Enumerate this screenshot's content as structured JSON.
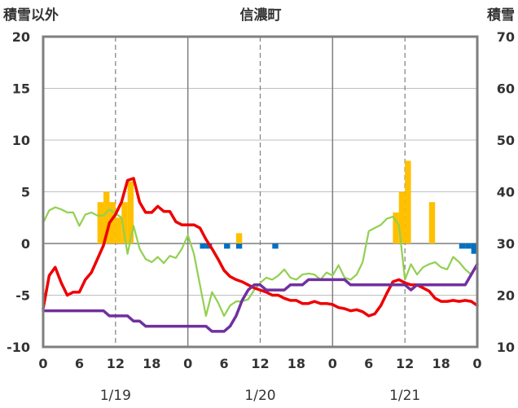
{
  "chart_data": {
    "type": "line",
    "title": "信濃町",
    "ylabel_left": "積雪以外",
    "ylabel_right": "積雪",
    "y_left": {
      "min": -10,
      "max": 20,
      "ticks": [
        -10,
        -5,
        0,
        5,
        10,
        15,
        20
      ]
    },
    "y_right": {
      "min": 10,
      "max": 70,
      "ticks": [
        10,
        20,
        30,
        40,
        50,
        60,
        70
      ]
    },
    "x": {
      "min": 0,
      "max": 72,
      "hour_ticks": [
        0,
        6,
        12,
        18,
        0,
        6,
        12,
        18,
        0,
        6,
        12,
        18,
        0
      ]
    },
    "day_labels": [
      "1/19",
      "1/20",
      "1/21"
    ],
    "grid": true,
    "colors": {
      "temperature": "#ee0000",
      "humidity_like": "#92d050",
      "snow_depth": "#7030a0",
      "snowfall": "#ffc000",
      "negative_bar": "#0070c0",
      "frame": "#7f7f7f"
    },
    "bars_positive": [
      {
        "x": 9.5,
        "value": 4
      },
      {
        "x": 10.5,
        "value": 5
      },
      {
        "x": 11.5,
        "value": 4
      },
      {
        "x": 12.5,
        "value": 2.5
      },
      {
        "x": 13.5,
        "value": 4
      },
      {
        "x": 14.5,
        "value": 6
      },
      {
        "x": 32.5,
        "value": 1
      },
      {
        "x": 58.5,
        "value": 3
      },
      {
        "x": 59.5,
        "value": 5
      },
      {
        "x": 60.5,
        "value": 8
      },
      {
        "x": 64.5,
        "value": 4
      }
    ],
    "bars_negative": [
      {
        "x": 26.5,
        "value": -0.5
      },
      {
        "x": 27.5,
        "value": -0.5
      },
      {
        "x": 30.5,
        "value": -0.5
      },
      {
        "x": 32.5,
        "value": -0.5
      },
      {
        "x": 38.5,
        "value": -0.5
      },
      {
        "x": 69.5,
        "value": -0.5
      },
      {
        "x": 70.5,
        "value": -0.5
      },
      {
        "x": 71.5,
        "value": -1
      }
    ],
    "series": [
      {
        "key": "red",
        "axis": "left",
        "points": [
          [
            0,
            -6.3
          ],
          [
            1,
            -3.1
          ],
          [
            2,
            -2.3
          ],
          [
            3,
            -3.8
          ],
          [
            4,
            -5
          ],
          [
            5,
            -4.7
          ],
          [
            6,
            -4.7
          ],
          [
            7,
            -3.5
          ],
          [
            8,
            -2.8
          ],
          [
            9,
            -1.5
          ],
          [
            10,
            -0.2
          ],
          [
            11,
            2
          ],
          [
            12,
            2.8
          ],
          [
            13,
            4
          ],
          [
            14,
            6.1
          ],
          [
            15,
            6.3
          ],
          [
            16,
            4
          ],
          [
            17,
            3
          ],
          [
            18,
            3
          ],
          [
            19,
            3.6
          ],
          [
            20,
            3.1
          ],
          [
            21,
            3.1
          ],
          [
            22,
            2.1
          ],
          [
            23,
            1.8
          ],
          [
            24,
            1.8
          ],
          [
            25,
            1.8
          ],
          [
            26,
            1.5
          ],
          [
            27,
            0.4
          ],
          [
            28,
            -0.5
          ],
          [
            29,
            -1.5
          ],
          [
            30,
            -2.6
          ],
          [
            31,
            -3.2
          ],
          [
            32,
            -3.5
          ],
          [
            33,
            -3.7
          ],
          [
            34,
            -4
          ],
          [
            35,
            -4.3
          ],
          [
            36,
            -4.5
          ],
          [
            37,
            -4.7
          ],
          [
            38,
            -5
          ],
          [
            39,
            -5
          ],
          [
            40,
            -5.3
          ],
          [
            41,
            -5.5
          ],
          [
            42,
            -5.5
          ],
          [
            43,
            -5.8
          ],
          [
            44,
            -5.8
          ],
          [
            45,
            -5.6
          ],
          [
            46,
            -5.8
          ],
          [
            47,
            -5.8
          ],
          [
            48,
            -5.9
          ],
          [
            49,
            -6.2
          ],
          [
            50,
            -6.3
          ],
          [
            51,
            -6.5
          ],
          [
            52,
            -6.4
          ],
          [
            53,
            -6.6
          ],
          [
            54,
            -7
          ],
          [
            55,
            -6.8
          ],
          [
            56,
            -6
          ],
          [
            57,
            -4.8
          ],
          [
            58,
            -3.7
          ],
          [
            59,
            -3.5
          ],
          [
            60,
            -3.8
          ],
          [
            61,
            -4
          ],
          [
            62,
            -4
          ],
          [
            63,
            -4.3
          ],
          [
            64,
            -4.6
          ],
          [
            65,
            -5.3
          ],
          [
            66,
            -5.6
          ],
          [
            67,
            -5.6
          ],
          [
            68,
            -5.5
          ],
          [
            69,
            -5.6
          ],
          [
            70,
            -5.5
          ],
          [
            71,
            -5.6
          ],
          [
            72,
            -6
          ]
        ]
      },
      {
        "key": "green",
        "axis": "left",
        "points": [
          [
            0,
            2
          ],
          [
            1,
            3.2
          ],
          [
            2,
            3.5
          ],
          [
            3,
            3.3
          ],
          [
            4,
            3
          ],
          [
            5,
            3
          ],
          [
            6,
            1.7
          ],
          [
            7,
            2.8
          ],
          [
            8,
            3
          ],
          [
            9,
            2.7
          ],
          [
            10,
            2.7
          ],
          [
            11,
            3.3
          ],
          [
            12,
            2.9
          ],
          [
            13,
            2.5
          ],
          [
            14,
            -1
          ],
          [
            15,
            1.7
          ],
          [
            16,
            -0.5
          ],
          [
            17,
            -1.5
          ],
          [
            18,
            -1.8
          ],
          [
            19,
            -1.3
          ],
          [
            20,
            -1.9
          ],
          [
            21,
            -1.2
          ],
          [
            22,
            -1.4
          ],
          [
            23,
            -0.5
          ],
          [
            24,
            0.8
          ],
          [
            25,
            -1
          ],
          [
            26,
            -4
          ],
          [
            27,
            -7
          ],
          [
            28,
            -4.7
          ],
          [
            29,
            -5.7
          ],
          [
            30,
            -7
          ],
          [
            31,
            -6
          ],
          [
            32,
            -5.6
          ],
          [
            33,
            -5.6
          ],
          [
            34,
            -5.4
          ],
          [
            35,
            -4.5
          ],
          [
            36,
            -3.8
          ],
          [
            37,
            -3.3
          ],
          [
            38,
            -3.5
          ],
          [
            39,
            -3.1
          ],
          [
            40,
            -2.5
          ],
          [
            41,
            -3.3
          ],
          [
            42,
            -3.5
          ],
          [
            43,
            -3
          ],
          [
            44,
            -2.9
          ],
          [
            45,
            -3
          ],
          [
            46,
            -3.5
          ],
          [
            47,
            -2.8
          ],
          [
            48,
            -3.1
          ],
          [
            49,
            -2.1
          ],
          [
            50,
            -3.3
          ],
          [
            51,
            -3.5
          ],
          [
            52,
            -3
          ],
          [
            53,
            -1.8
          ],
          [
            54,
            1.2
          ],
          [
            55,
            1.5
          ],
          [
            56,
            1.8
          ],
          [
            57,
            2.4
          ],
          [
            58,
            2.6
          ],
          [
            59,
            1.8
          ],
          [
            60,
            -3.5
          ],
          [
            61,
            -2
          ],
          [
            62,
            -3
          ],
          [
            63,
            -2.3
          ],
          [
            64,
            -2
          ],
          [
            65,
            -1.8
          ],
          [
            66,
            -2.3
          ],
          [
            67,
            -2.5
          ],
          [
            68,
            -1.3
          ],
          [
            69,
            -1.8
          ],
          [
            70,
            -2.5
          ],
          [
            71,
            -3
          ]
        ]
      },
      {
        "key": "purple",
        "axis": "right",
        "points": [
          [
            0,
            17
          ],
          [
            10,
            17
          ],
          [
            11,
            16
          ],
          [
            14,
            16
          ],
          [
            15,
            15
          ],
          [
            16,
            15
          ],
          [
            17,
            14
          ],
          [
            27,
            14
          ],
          [
            28,
            13
          ],
          [
            30,
            13
          ],
          [
            31,
            14
          ],
          [
            32,
            16
          ],
          [
            33,
            19
          ],
          [
            34,
            21
          ],
          [
            35,
            22
          ],
          [
            36,
            22
          ],
          [
            37,
            21
          ],
          [
            40,
            21
          ],
          [
            41,
            22
          ],
          [
            43,
            22
          ],
          [
            44,
            23
          ],
          [
            50,
            23
          ],
          [
            51,
            22
          ],
          [
            60,
            22
          ],
          [
            61,
            21
          ],
          [
            62,
            22
          ],
          [
            69,
            22
          ],
          [
            70,
            22
          ],
          [
            71,
            24
          ],
          [
            72,
            26
          ]
        ]
      }
    ]
  }
}
